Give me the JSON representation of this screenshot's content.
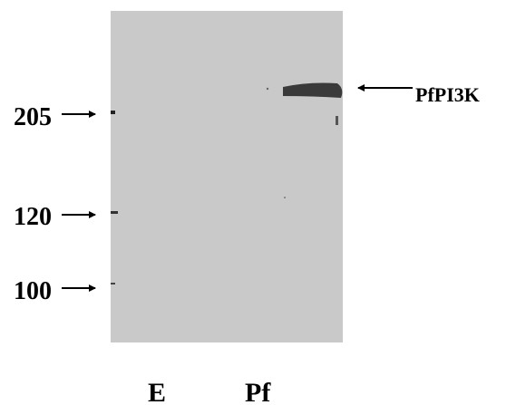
{
  "markers": [
    {
      "label": "205"
    },
    {
      "label": "120"
    },
    {
      "label": "100"
    }
  ],
  "band": {
    "label": "PfPI3K"
  },
  "lanes": [
    {
      "label": "E"
    },
    {
      "label": "Pf"
    }
  ]
}
